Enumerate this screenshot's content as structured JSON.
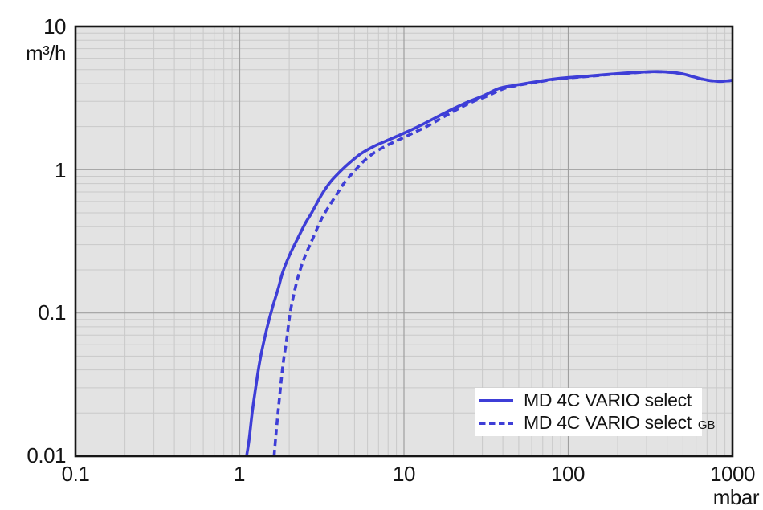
{
  "colors": {
    "curve_blue": "#3e3ed7",
    "plot_background": "#e3e3e3",
    "grid_minor": "#c9c9c9",
    "grid_major": "#9f9f9f",
    "frame": "#161616",
    "text": "#141414",
    "legend_background": "#ffffff"
  },
  "legend": {
    "items": [
      {
        "label": "MD 4C VARIO select",
        "suffix": "",
        "line_style": "solid"
      },
      {
        "label": "MD 4C VARIO select",
        "suffix": "GB",
        "line_style": "dashed"
      }
    ]
  },
  "chart_data": {
    "type": "line",
    "x_axis": {
      "unit": "mbar",
      "scale": "log",
      "min": 0.1,
      "max": 1000,
      "tick_labels": [
        "0.1",
        "1",
        "10",
        "100",
        "1000"
      ]
    },
    "y_axis": {
      "unit": "m³/h",
      "scale": "log",
      "min": 0.01,
      "max": 10,
      "tick_labels": [
        "10",
        "1",
        "0.1",
        "0.01"
      ]
    },
    "grid": "log minor + major, gray on light-gray panel",
    "legend_position": "bottom-right inside plot",
    "series": [
      {
        "name": "MD 4C VARIO select",
        "line_style": "solid",
        "color": "#3e3ed7",
        "points_unit": [
          "pressure_mbar",
          "pumping_speed_m3_per_h"
        ],
        "points": [
          [
            1.1,
            0.01
          ],
          [
            1.14,
            0.013
          ],
          [
            1.19,
            0.02
          ],
          [
            1.25,
            0.03
          ],
          [
            1.32,
            0.045
          ],
          [
            1.41,
            0.065
          ],
          [
            1.51,
            0.09
          ],
          [
            1.6,
            0.114
          ],
          [
            1.72,
            0.15
          ],
          [
            1.82,
            0.19
          ],
          [
            2.0,
            0.25
          ],
          [
            2.22,
            0.32
          ],
          [
            2.5,
            0.42
          ],
          [
            2.74,
            0.5
          ],
          [
            3.13,
            0.66
          ],
          [
            3.5,
            0.8
          ],
          [
            3.9,
            0.92
          ],
          [
            4.27,
            1.02
          ],
          [
            4.8,
            1.15
          ],
          [
            5.5,
            1.3
          ],
          [
            6.5,
            1.45
          ],
          [
            7.7,
            1.58
          ],
          [
            10,
            1.8
          ],
          [
            12.2,
            2.0
          ],
          [
            15.5,
            2.3
          ],
          [
            20,
            2.67
          ],
          [
            25,
            3.0
          ],
          [
            30,
            3.26
          ],
          [
            38,
            3.7
          ],
          [
            47,
            3.88
          ],
          [
            57,
            4.03
          ],
          [
            66,
            4.14
          ],
          [
            81,
            4.29
          ],
          [
            101,
            4.4
          ],
          [
            131,
            4.5
          ],
          [
            171,
            4.62
          ],
          [
            221,
            4.72
          ],
          [
            281,
            4.8
          ],
          [
            350,
            4.84
          ],
          [
            430,
            4.78
          ],
          [
            500,
            4.66
          ],
          [
            570,
            4.48
          ],
          [
            650,
            4.3
          ],
          [
            750,
            4.18
          ],
          [
            850,
            4.15
          ],
          [
            930,
            4.17
          ],
          [
            1000,
            4.22
          ]
        ]
      },
      {
        "name": "MD 4C VARIO select GB",
        "line_style": "dashed",
        "color": "#3e3ed7",
        "points_unit": [
          "pressure_mbar",
          "pumping_speed_m3_per_h"
        ],
        "points": [
          [
            1.62,
            0.01
          ],
          [
            1.66,
            0.014
          ],
          [
            1.71,
            0.02
          ],
          [
            1.77,
            0.03
          ],
          [
            1.84,
            0.045
          ],
          [
            1.93,
            0.065
          ],
          [
            2.0,
            0.09
          ],
          [
            2.07,
            0.114
          ],
          [
            2.18,
            0.15
          ],
          [
            2.3,
            0.19
          ],
          [
            2.5,
            0.25
          ],
          [
            2.75,
            0.32
          ],
          [
            3.05,
            0.42
          ],
          [
            3.3,
            0.5
          ],
          [
            3.85,
            0.66
          ],
          [
            4.3,
            0.8
          ],
          [
            4.75,
            0.92
          ],
          [
            5.15,
            1.02
          ],
          [
            5.7,
            1.15
          ],
          [
            6.5,
            1.3
          ],
          [
            7.6,
            1.45
          ],
          [
            8.9,
            1.58
          ],
          [
            11.3,
            1.8
          ],
          [
            13.7,
            2.0
          ],
          [
            17,
            2.3
          ],
          [
            21.5,
            2.67
          ],
          [
            26.5,
            3.0
          ],
          [
            31.5,
            3.24
          ],
          [
            40,
            3.66
          ],
          [
            48,
            3.86
          ],
          [
            58,
            4.01
          ],
          [
            67,
            4.12
          ],
          [
            82,
            4.27
          ],
          [
            102,
            4.38
          ],
          [
            132,
            4.48
          ],
          [
            172,
            4.6
          ],
          [
            222,
            4.7
          ],
          [
            282,
            4.79
          ],
          [
            350,
            4.83
          ],
          [
            430,
            4.77
          ],
          [
            500,
            4.65
          ],
          [
            570,
            4.47
          ],
          [
            650,
            4.29
          ],
          [
            750,
            4.17
          ],
          [
            850,
            4.14
          ],
          [
            930,
            4.16
          ],
          [
            1000,
            4.21
          ]
        ]
      }
    ]
  }
}
